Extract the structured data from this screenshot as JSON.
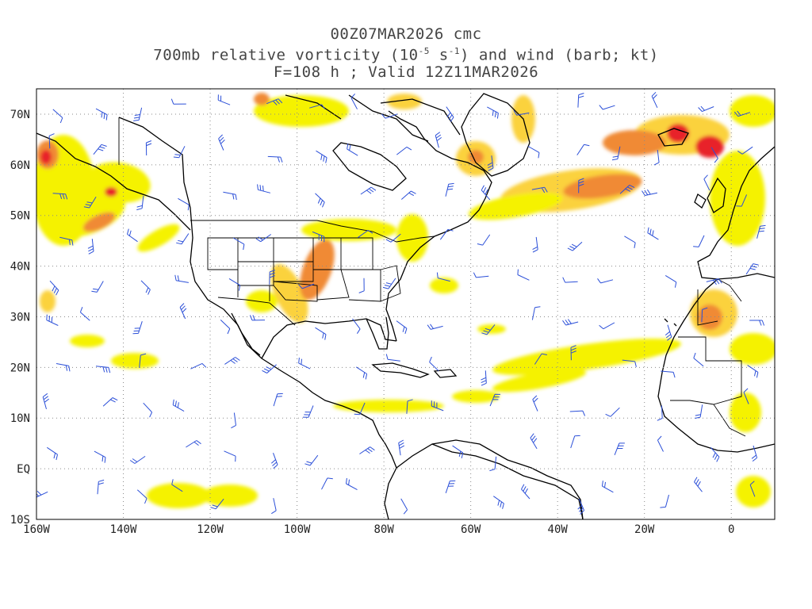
{
  "title": {
    "line1": "00Z07MAR2026 cmc",
    "line2_pre": "700mb relative vorticity (10",
    "line2_exp1": "-5",
    "line2_mid": " s",
    "line2_exp2": "-1",
    "line2_post": ") and wind (barb; kt)",
    "line3": "F=108 h ; Valid 12Z11MAR2026"
  },
  "axes": {
    "lon_labels": [
      "160W",
      "140W",
      "120W",
      "100W",
      "80W",
      "60W",
      "40W",
      "20W",
      "0"
    ],
    "lat_labels": [
      "70N",
      "60N",
      "50N",
      "40N",
      "30N",
      "20N",
      "10N",
      "EQ",
      "10S"
    ],
    "lon_values": [
      -160,
      -140,
      -120,
      -100,
      -80,
      -60,
      -40,
      -20,
      0
    ],
    "lat_values": [
      70,
      60,
      50,
      40,
      30,
      20,
      10,
      0,
      -10
    ],
    "lon_range": [
      -160,
      10
    ],
    "lat_range": [
      -10,
      75
    ],
    "grid": true
  },
  "colors": {
    "vort_low": "#f5f200",
    "vort_mid": "#fbd23c",
    "vort_high": "#f08a34",
    "vort_max": "#e8202a",
    "barbs": "#2b4fd8",
    "coast": "#000000"
  }
}
